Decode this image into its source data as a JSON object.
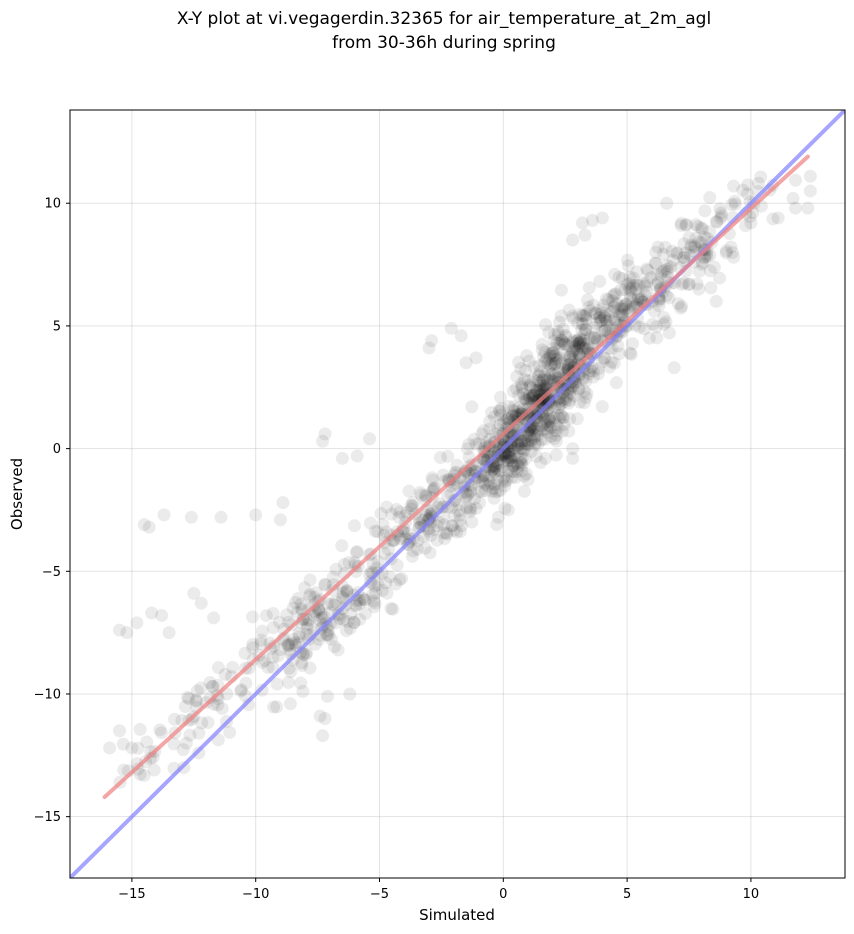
{
  "chart_data": {
    "type": "scatter",
    "title_lines": [
      "X-Y plot at vi.vegagerdin.32365 for air_temperature_at_2m_agl",
      "from 30-36h during spring"
    ],
    "xlabel": "Simulated",
    "ylabel": "Observed",
    "xlim": [
      -17.5,
      13.8
    ],
    "ylim": [
      -17.5,
      13.8
    ],
    "xticks": [
      -15,
      -10,
      -5,
      0,
      5,
      10
    ],
    "yticks": [
      -15,
      -10,
      -5,
      0,
      5,
      10
    ],
    "xtick_labels": [
      "−15",
      "−10",
      "−5",
      "0",
      "5",
      "10"
    ],
    "ytick_labels": [
      "−15",
      "−10",
      "−5",
      "0",
      "5",
      "10"
    ],
    "grid": true,
    "point_color": "#000000",
    "point_alpha": 0.08,
    "regression_line": {
      "color": "#f08080",
      "x": [
        -16.1,
        12.3
      ],
      "y": [
        -14.2,
        11.9
      ]
    },
    "identity_line": {
      "color": "#8080ff",
      "x": [
        -17.5,
        13.8
      ],
      "y": [
        -17.5,
        13.8
      ]
    },
    "clusters": [
      {
        "cx": 1.3,
        "cy": 1.5,
        "sx": 1.2,
        "sy": 1.4,
        "n": 320
      },
      {
        "cx": 3.0,
        "cy": 4.0,
        "sx": 1.5,
        "sy": 1.5,
        "n": 240
      },
      {
        "cx": 0.0,
        "cy": -0.5,
        "sx": 1.4,
        "sy": 1.4,
        "n": 160
      },
      {
        "cx": -3.5,
        "cy": -3.0,
        "sx": 1.5,
        "sy": 1.4,
        "n": 150
      },
      {
        "cx": 6.0,
        "cy": 6.5,
        "sx": 1.4,
        "sy": 1.5,
        "n": 130
      },
      {
        "cx": -7.5,
        "cy": -7.0,
        "sx": 1.3,
        "sy": 1.3,
        "n": 140
      },
      {
        "cx": 8.5,
        "cy": 8.5,
        "sx": 1.2,
        "sy": 1.3,
        "n": 60
      },
      {
        "cx": -11.5,
        "cy": -10.0,
        "sx": 1.2,
        "sy": 1.3,
        "n": 50
      },
      {
        "cx": -14.3,
        "cy": -12.5,
        "sx": 0.9,
        "sy": 0.8,
        "n": 22
      },
      {
        "cx": -5.5,
        "cy": -6.5,
        "sx": 1.0,
        "sy": 1.0,
        "n": 30
      }
    ],
    "outliers": [
      [
        -14.5,
        -3.1
      ],
      [
        -14.3,
        -3.2
      ],
      [
        -13.7,
        -2.7
      ],
      [
        -12.6,
        -2.8
      ],
      [
        -11.4,
        -2.8
      ],
      [
        -10.0,
        -2.7
      ],
      [
        -9.0,
        -2.9
      ],
      [
        -8.9,
        -2.2
      ],
      [
        -7.3,
        0.3
      ],
      [
        -7.2,
        0.6
      ],
      [
        -6.5,
        -0.4
      ],
      [
        -5.9,
        -0.3
      ],
      [
        -5.4,
        0.4
      ],
      [
        -3.0,
        4.1
      ],
      [
        -2.9,
        4.4
      ],
      [
        -2.1,
        4.9
      ],
      [
        -1.7,
        4.6
      ],
      [
        -1.5,
        3.5
      ],
      [
        -1.1,
        3.7
      ],
      [
        -14.2,
        -6.7
      ],
      [
        -13.8,
        -6.8
      ],
      [
        -13.5,
        -7.5
      ],
      [
        -15.5,
        -7.4
      ],
      [
        -15.2,
        -7.5
      ],
      [
        -14.8,
        -7.1
      ],
      [
        -12.5,
        -5.9
      ],
      [
        -12.2,
        -6.3
      ],
      [
        -11.7,
        -6.9
      ],
      [
        -7.3,
        -11.7
      ],
      [
        -7.2,
        -11.0
      ],
      [
        -7.4,
        -10.9
      ],
      [
        -7.1,
        -10.1
      ],
      [
        -6.2,
        -10.0
      ],
      [
        -8.6,
        -10.4
      ],
      [
        -15.9,
        -12.2
      ],
      [
        -15.5,
        -11.5
      ],
      [
        -15.0,
        -12.2
      ],
      [
        -14.1,
        -13.1
      ],
      [
        -12.9,
        -13.0
      ],
      [
        -12.3,
        -12.4
      ],
      [
        7.2,
        5.8
      ],
      [
        8.6,
        6.0
      ],
      [
        9.8,
        9.6
      ],
      [
        10.0,
        9.2
      ],
      [
        11.1,
        9.4
      ],
      [
        11.7,
        10.2
      ],
      [
        11.8,
        9.8
      ],
      [
        12.3,
        9.8
      ],
      [
        12.4,
        10.5
      ],
      [
        12.4,
        11.1
      ],
      [
        6.6,
        10.0
      ],
      [
        4.5,
        7.1
      ],
      [
        3.2,
        9.2
      ],
      [
        3.3,
        8.7
      ],
      [
        3.6,
        9.3
      ],
      [
        2.8,
        8.5
      ],
      [
        6.9,
        3.3
      ],
      [
        5.9,
        4.5
      ],
      [
        -0.2,
        -2.8
      ],
      [
        0.2,
        -2.5
      ],
      [
        1.7,
        -0.4
      ],
      [
        2.8,
        0.0
      ],
      [
        2.8,
        -0.4
      ],
      [
        7.9,
        6.5
      ],
      [
        9.3,
        7.8
      ],
      [
        9.3,
        10.7
      ],
      [
        8.0,
        9.0
      ],
      [
        4.0,
        9.4
      ]
    ]
  }
}
